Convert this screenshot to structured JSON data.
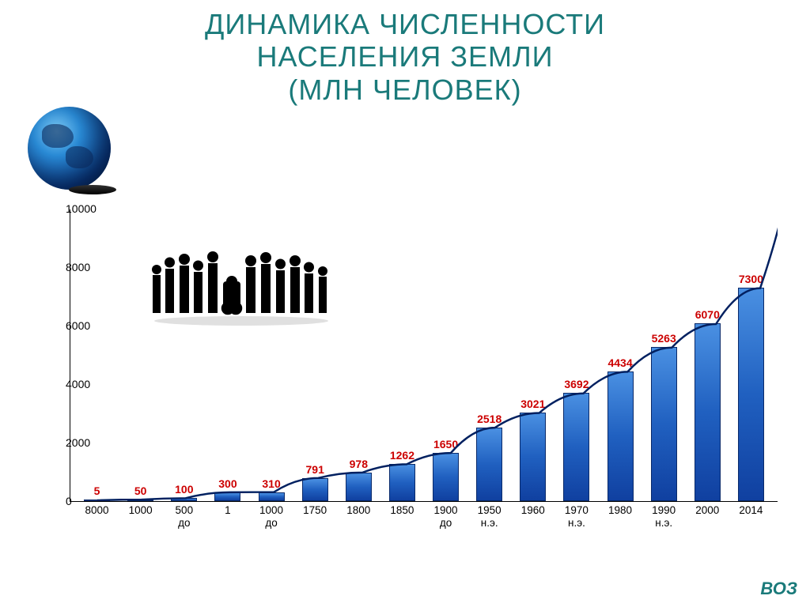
{
  "title": {
    "line1": "ДИНАМИКА ЧИСЛЕННОСТИ",
    "line2": "НАСЕЛЕНИЯ ЗЕМЛИ",
    "line3": "(МЛН ЧЕЛОВЕК)",
    "color": "#1a7a7a",
    "fontsize": 36
  },
  "chart": {
    "type": "bar+line",
    "ylim": [
      0,
      10000
    ],
    "ytick_step": 2000,
    "yticks": [
      0,
      2000,
      4000,
      6000,
      8000,
      10000
    ],
    "bar_color_gradient": [
      "#4a90e2",
      "#2060c0",
      "#1040a0"
    ],
    "bar_border_color": "#0a2a6a",
    "value_label_color": "#cc0000",
    "value_label_fontsize": 14,
    "axis_label_color": "#000000",
    "axis_label_fontsize": 14,
    "curve_color": "#002060",
    "curve_width": 2.5,
    "background_color": "#ffffff",
    "bar_width": 0.6,
    "categories": [
      {
        "label": "8000",
        "sub": "",
        "value": 5
      },
      {
        "label": "1000",
        "sub": "",
        "value": 50
      },
      {
        "label": "500",
        "sub": "до",
        "value": 100
      },
      {
        "label": "1",
        "sub": "",
        "value": 300
      },
      {
        "label": "1000",
        "sub": "до",
        "value": 310
      },
      {
        "label": "1750",
        "sub": "",
        "value": 791
      },
      {
        "label": "1800",
        "sub": "",
        "value": 978
      },
      {
        "label": "1850",
        "sub": "",
        "value": 1262
      },
      {
        "label": "1900",
        "sub": "до",
        "value": 1650
      },
      {
        "label": "1950",
        "sub": "н.э.",
        "value": 2518
      },
      {
        "label": "1960",
        "sub": "",
        "value": 3021
      },
      {
        "label": "1970",
        "sub": "н.э.",
        "value": 3692
      },
      {
        "label": "1980",
        "sub": "",
        "value": 4434
      },
      {
        "label": "1990",
        "sub": "н.э.",
        "value": 5263
      },
      {
        "label": "2000",
        "sub": "",
        "value": 6070
      },
      {
        "label": "2014",
        "sub": "",
        "value": 7300
      }
    ]
  },
  "decorations": {
    "globe_colors": [
      "#7ec8f0",
      "#2a8cd8",
      "#0a3d8f",
      "#041f4a"
    ],
    "people_silhouette_color": "#000000"
  },
  "source": {
    "text": "ВОЗ",
    "color": "#1a7a7a"
  }
}
